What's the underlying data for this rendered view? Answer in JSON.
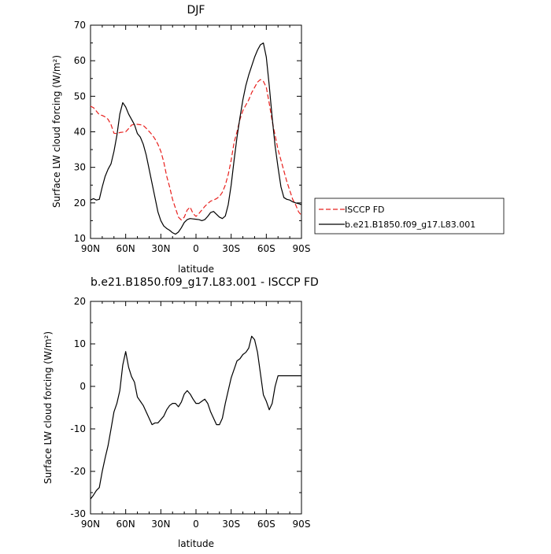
{
  "chart_data": [
    {
      "type": "line",
      "title": "DJF",
      "xlabel": "latitude",
      "ylabel": "Surface LW cloud forcing (W/m²)",
      "xlim": [
        -90,
        90
      ],
      "ylim": [
        10,
        70
      ],
      "x_tick_values": [
        -90,
        -60,
        -30,
        0,
        30,
        60,
        90
      ],
      "x_tick_labels": [
        "90N",
        "60N",
        "30N",
        "0",
        "30S",
        "60S",
        "90S"
      ],
      "y_tick_values": [
        10,
        20,
        30,
        40,
        50,
        60,
        70
      ],
      "grid": false,
      "legend": "outside right",
      "series": [
        {
          "name": "ISCCP FD",
          "color": "#e8201d",
          "dash": true,
          "x": [
            -90,
            -87.5,
            -85,
            -82.5,
            -80,
            -77.5,
            -75,
            -72.5,
            -70,
            -67.5,
            -65,
            -62.5,
            -60,
            -57.5,
            -55,
            -52.5,
            -50,
            -47.5,
            -45,
            -42.5,
            -40,
            -37.5,
            -35,
            -32.5,
            -30,
            -27.5,
            -25,
            -22.5,
            -20,
            -17.5,
            -15,
            -12.5,
            -10,
            -7.5,
            -5,
            -2.5,
            0,
            2.5,
            5,
            7.5,
            10,
            12.5,
            15,
            17.5,
            20,
            22.5,
            25,
            27.5,
            30,
            32.5,
            35,
            37.5,
            40,
            42.5,
            45,
            47.5,
            50,
            52.5,
            55,
            57.5,
            60,
            62.5,
            65,
            67.5,
            70,
            72.5,
            75,
            77.5,
            80,
            82.5,
            85,
            87.5,
            90
          ],
          "values": [
            47.2,
            46.8,
            45.8,
            44.8,
            44.6,
            44.2,
            43.5,
            42.0,
            39.6,
            39.5,
            39.8,
            39.9,
            40.0,
            40.9,
            41.9,
            42.1,
            42.1,
            42.0,
            41.8,
            41.0,
            40.1,
            39.2,
            38.0,
            36.5,
            34.5,
            31.5,
            27.5,
            24.5,
            21.0,
            18.5,
            16.0,
            15.2,
            16.0,
            18.0,
            18.8,
            17.0,
            16.2,
            17.0,
            18.0,
            19.0,
            19.8,
            20.5,
            20.8,
            21.2,
            21.8,
            23.0,
            25.0,
            28.0,
            32.0,
            37.0,
            40.0,
            43.5,
            46.0,
            47.5,
            49.0,
            51.0,
            52.5,
            54.0,
            54.7,
            54.2,
            52.5,
            48.0,
            43.0,
            39.0,
            35.0,
            32.0,
            29.0,
            26.0,
            23.5,
            21.0,
            19.5,
            17.5,
            16.5
          ]
        },
        {
          "name": "b.e21.B1850.f09_g17.L83.001",
          "color": "#000000",
          "dash": false,
          "x": [
            -90,
            -87.5,
            -85,
            -82.5,
            -80,
            -77.5,
            -75,
            -72.5,
            -70,
            -67.5,
            -65,
            -62.5,
            -60,
            -57.5,
            -55,
            -52.5,
            -50,
            -47.5,
            -45,
            -42.5,
            -40,
            -37.5,
            -35,
            -32.5,
            -30,
            -27.5,
            -25,
            -22.5,
            -20,
            -17.5,
            -15,
            -12.5,
            -10,
            -7.5,
            -5,
            -2.5,
            0,
            2.5,
            5,
            7.5,
            10,
            12.5,
            15,
            17.5,
            20,
            22.5,
            25,
            27.5,
            30,
            32.5,
            35,
            37.5,
            40,
            42.5,
            45,
            47.5,
            50,
            52.5,
            55,
            57.5,
            60,
            62.5,
            65,
            67.5,
            70,
            72.5,
            75,
            77.5,
            80,
            82.5,
            85,
            87.5,
            90
          ],
          "values": [
            20.8,
            21.2,
            20.8,
            21.0,
            24.5,
            27.5,
            29.5,
            31.0,
            34.5,
            39.0,
            45.0,
            48.2,
            47.0,
            45.0,
            43.5,
            42.0,
            39.5,
            38.5,
            36.5,
            33.5,
            29.5,
            25.5,
            21.5,
            17.5,
            15.0,
            13.5,
            12.8,
            12.3,
            11.6,
            11.2,
            11.8,
            13.0,
            14.5,
            15.3,
            15.6,
            15.5,
            15.4,
            15.3,
            15.0,
            15.3,
            16.2,
            17.3,
            17.6,
            16.8,
            16.0,
            15.6,
            16.3,
            19.5,
            25.0,
            32.0,
            38.5,
            44.0,
            49.0,
            53.0,
            56.0,
            58.5,
            61.0,
            63.0,
            64.5,
            65.0,
            61.0,
            53.0,
            44.0,
            36.0,
            30.0,
            24.5,
            21.5,
            21.0,
            20.8,
            20.3,
            20.0,
            19.8,
            19.5
          ]
        }
      ]
    },
    {
      "type": "line",
      "title": "b.e21.B1850.f09_g17.L83.001 - ISCCP FD",
      "xlabel": "latitude",
      "ylabel": "Surface LW cloud forcing (W/m²)",
      "xlim": [
        -90,
        90
      ],
      "ylim": [
        -30,
        20
      ],
      "x_tick_values": [
        -90,
        -60,
        -30,
        0,
        30,
        60,
        90
      ],
      "x_tick_labels": [
        "90N",
        "60N",
        "30N",
        "0",
        "30S",
        "60S",
        "90S"
      ],
      "y_tick_values": [
        -30,
        -20,
        -10,
        0,
        10,
        20
      ],
      "grid": false,
      "series": [
        {
          "color": "#000000",
          "dash": false,
          "x": [
            -90,
            -87.5,
            -85,
            -82.5,
            -80,
            -77.5,
            -75,
            -72.5,
            -70,
            -67.5,
            -65,
            -62.5,
            -60,
            -57.5,
            -55,
            -52.5,
            -50,
            -47.5,
            -45,
            -42.5,
            -40,
            -37.5,
            -35,
            -32.5,
            -30,
            -27.5,
            -25,
            -22.5,
            -20,
            -17.5,
            -15,
            -12.5,
            -10,
            -7.5,
            -5,
            -2.5,
            0,
            2.5,
            5,
            7.5,
            10,
            12.5,
            15,
            17.5,
            20,
            22.5,
            25,
            27.5,
            30,
            32.5,
            35,
            37.5,
            40,
            42.5,
            45,
            47.5,
            50,
            52.5,
            55,
            57.5,
            60,
            62.5,
            65,
            67.5,
            70,
            72.5,
            75,
            77.5,
            80,
            82.5,
            85,
            87.5,
            90
          ],
          "values": [
            -26.5,
            -25.6,
            -24.5,
            -23.8,
            -20.0,
            -16.8,
            -13.9,
            -10.0,
            -6.0,
            -4.0,
            -1.0,
            5.0,
            8.2,
            4.5,
            2.3,
            1.0,
            -2.5,
            -3.5,
            -4.5,
            -6.0,
            -7.5,
            -9.0,
            -8.6,
            -8.6,
            -7.8,
            -7.0,
            -5.5,
            -4.5,
            -4.0,
            -4.0,
            -4.8,
            -3.7,
            -1.8,
            -1.0,
            -1.8,
            -3.0,
            -4.0,
            -4.0,
            -3.5,
            -3.0,
            -4.0,
            -6.0,
            -7.5,
            -9.0,
            -9.0,
            -7.5,
            -4.0,
            -1.0,
            2.0,
            4.0,
            6.0,
            6.5,
            7.5,
            8.0,
            9.0,
            11.8,
            11.0,
            8.0,
            3.0,
            -2.0,
            -3.5,
            -5.5,
            -4.0,
            0.0,
            2.5,
            2.5,
            2.5,
            2.5,
            2.5,
            2.5,
            2.5,
            2.5,
            2.5
          ]
        }
      ]
    }
  ]
}
